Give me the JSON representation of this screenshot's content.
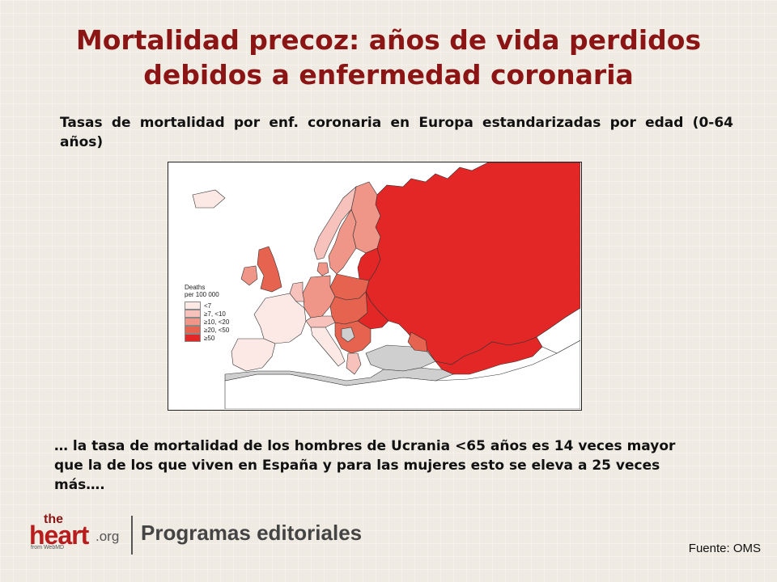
{
  "slide": {
    "title_line1": "Mortalidad precoz: años de vida perdidos",
    "title_line2": "debidos a enfermedad coronaria",
    "subtitle": "Tasas de mortalidad por enf. coronaria en Europa estandarizadas por edad (0-64 años)",
    "note": "… la tasa de mortalidad de los hombres de Ucrania <65 años es 14 veces mayor que la de los que viven en España y para las mujeres esto se eleva a 25 veces más….",
    "source": "Fuente: OMS"
  },
  "map": {
    "legend_title_line1": "Deaths",
    "legend_title_line2": "per 100 000",
    "legend": [
      {
        "label": "<7",
        "color": "#fce9e6"
      },
      {
        "label": "≥7, <10",
        "color": "#f6c2bb"
      },
      {
        "label": "≥10, <20",
        "color": "#ef9688"
      },
      {
        "label": "≥20, <50",
        "color": "#e6634f"
      },
      {
        "label": "≥50",
        "color": "#e32726"
      }
    ],
    "colors": {
      "sea": "#ffffff",
      "no_data": "#cfcfcf",
      "outside": "#ffffff",
      "border": "#333333"
    }
  },
  "logo": {
    "the": "the",
    "heart": "heart",
    "org": ".org",
    "from": "from WebMD",
    "section": "Programas editoriales"
  }
}
